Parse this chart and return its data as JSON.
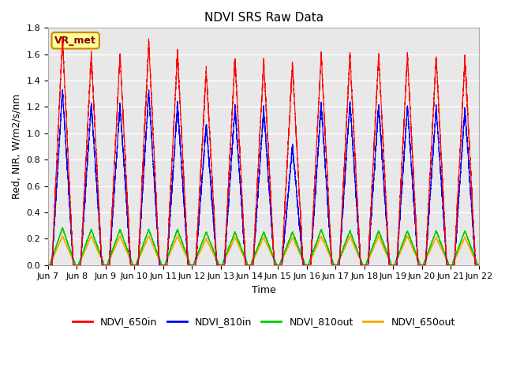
{
  "title": "NDVI SRS Raw Data",
  "xlabel": "Time",
  "ylabel": "Red, NIR, W/m2/s/nm",
  "xlim_start": 0,
  "xlim_end": 15,
  "ylim": [
    0.0,
    1.8
  ],
  "yticks": [
    0.0,
    0.2,
    0.4,
    0.6,
    0.8,
    1.0,
    1.2,
    1.4,
    1.6,
    1.8
  ],
  "xtick_labels": [
    "Jun 7",
    "Jun 8",
    "Jun 9",
    "Jun 10",
    "Jun 11",
    "Jun 12",
    "Jun 13",
    "Jun 14",
    "Jun 15",
    "Jun 16",
    "Jun 17",
    "Jun 18",
    "Jun 19",
    "Jun 20",
    "Jun 21",
    "Jun 22"
  ],
  "colors": {
    "NDVI_650in": "#ff0000",
    "NDVI_810in": "#0000ff",
    "NDVI_810out": "#00cc00",
    "NDVI_650out": "#ffaa00"
  },
  "annotation_text": "VR_met",
  "annotation_bg": "#ffff99",
  "annotation_border": "#cc8800",
  "bg_color": "#e8e8e8",
  "grid_color": "#ffffff",
  "n_days": 15,
  "peak_650in": [
    1.72,
    1.6,
    1.6,
    1.7,
    1.62,
    1.48,
    1.57,
    1.55,
    1.53,
    1.6,
    1.6,
    1.6,
    1.6,
    1.59,
    1.57
  ],
  "peak_810in": [
    1.33,
    1.23,
    1.22,
    1.32,
    1.22,
    1.07,
    1.2,
    1.19,
    0.9,
    1.22,
    1.24,
    1.22,
    1.21,
    1.2,
    1.19
  ],
  "peak_810out": [
    0.28,
    0.27,
    0.27,
    0.27,
    0.27,
    0.25,
    0.25,
    0.25,
    0.25,
    0.27,
    0.26,
    0.26,
    0.26,
    0.26,
    0.26
  ],
  "peak_650out": [
    0.22,
    0.22,
    0.22,
    0.22,
    0.22,
    0.2,
    0.21,
    0.21,
    0.21,
    0.22,
    0.22,
    0.22,
    0.22,
    0.21,
    0.21
  ],
  "title_fontsize": 11,
  "label_fontsize": 9,
  "tick_fontsize": 8,
  "legend_fontsize": 9
}
